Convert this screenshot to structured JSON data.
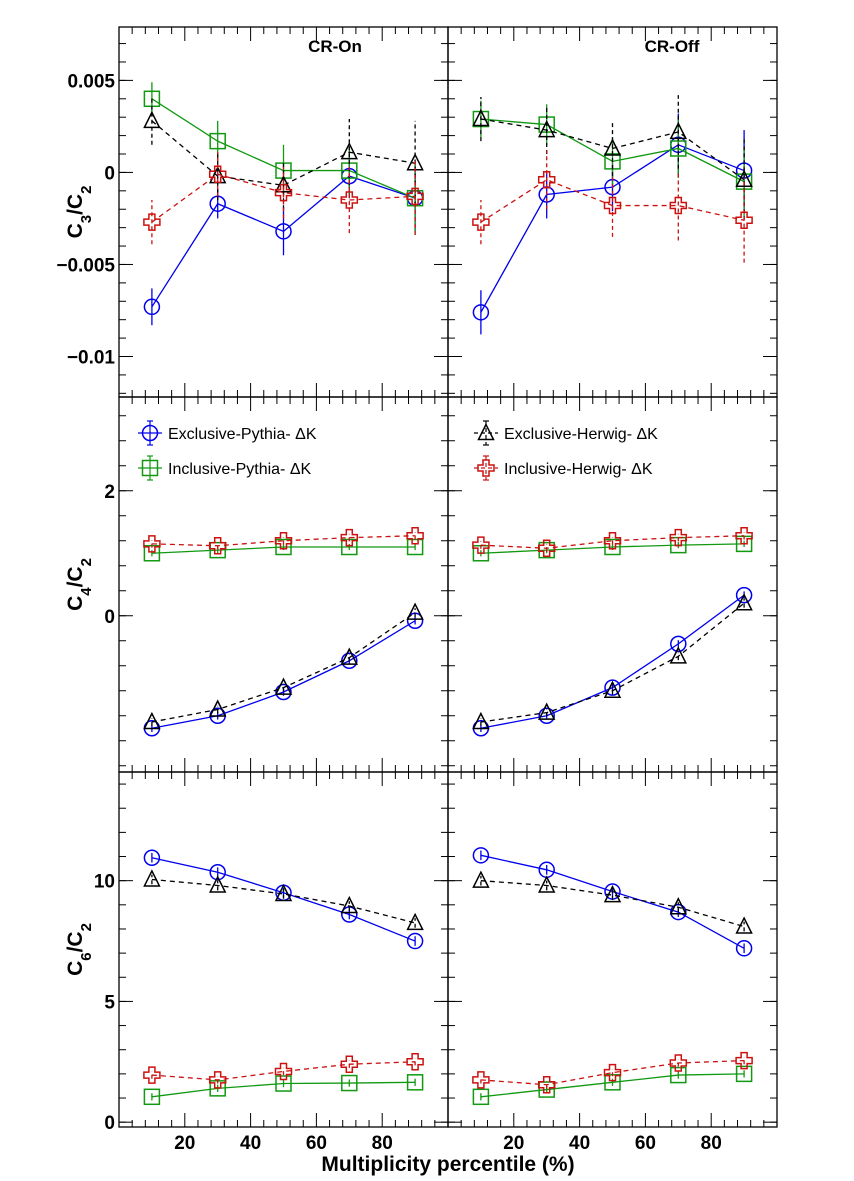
{
  "chart_data": {
    "type": "scatter",
    "xlabel": "Multiplicity percentile (%)",
    "xlim": [
      0,
      100
    ],
    "x_ticks": [
      20,
      40,
      60,
      80
    ],
    "x_tick_labels": [
      "20",
      "40",
      "60",
      "80"
    ],
    "column_labels": [
      "CR-On",
      "CR-Off"
    ],
    "series_styles": [
      {
        "name": "Exclusive-Pythia- ΔK",
        "color": "#0000ee",
        "marker": "circle",
        "line": "solid"
      },
      {
        "name": "Inclusive-Pythia- ΔK",
        "color": "#119911",
        "marker": "square",
        "line": "solid"
      },
      {
        "name": "Exclusive-Herwig- ΔK",
        "color": "#000000",
        "marker": "triangle",
        "line": "dashed"
      },
      {
        "name": "Inclusive-Herwig- ΔK",
        "color": "#cc1111",
        "marker": "cross",
        "line": "dashed"
      }
    ],
    "x": [
      10,
      30,
      50,
      70,
      90
    ],
    "rows": [
      {
        "ylabel_main": "C",
        "ylabel_num": "3",
        "ylabel_sub": "2",
        "ylim": [
          -0.0122,
          0.0079
        ],
        "y_ticks": [
          0.005,
          0,
          -0.005,
          -0.01
        ],
        "y_tick_labels": [
          "0.005",
          "0",
          "−0.005",
          "−0.01"
        ],
        "panels": [
          {
            "label": "CR-On",
            "series": [
              {
                "values": [
                  -0.0073,
                  -0.0017,
                  -0.0032,
                  -0.0002,
                  -0.0014
                ],
                "errors": [
                  0.001,
                  0.0008,
                  0.0013,
                  0.0012,
                  0.0018
                ]
              },
              {
                "values": [
                  0.004,
                  0.0017,
                  0.0001,
                  0.0001,
                  -0.0014
                ],
                "errors": [
                  0.0009,
                  0.0011,
                  0.0014,
                  0.0013,
                  0.002
                ]
              },
              {
                "values": [
                  0.0028,
                  -0.0002,
                  -0.0007,
                  0.0011,
                  0.0005
                ],
                "errors": [
                  0.0013,
                  0.0013,
                  0.0013,
                  0.0018,
                  0.0023
                ]
              },
              {
                "values": [
                  -0.0027,
                  -0.0001,
                  -0.0011,
                  -0.0015,
                  -0.0013
                ],
                "errors": [
                  0.0012,
                  0.0012,
                  0.0014,
                  0.0018,
                  0.0021
                ]
              }
            ]
          },
          {
            "label": "CR-Off",
            "series": [
              {
                "values": [
                  -0.0076,
                  -0.0012,
                  -0.0008,
                  0.0015,
                  0.0001
                ],
                "errors": [
                  0.0012,
                  0.0013,
                  0.0013,
                  0.0017,
                  0.0022
                ]
              },
              {
                "values": [
                  0.0029,
                  0.0026,
                  0.0006,
                  0.0013,
                  -0.0005
                ],
                "errors": [
                  0.001,
                  0.0011,
                  0.0013,
                  0.0016,
                  0.0019
                ]
              },
              {
                "values": [
                  0.0029,
                  0.0023,
                  0.0013,
                  0.0022,
                  -0.0004
                ],
                "errors": [
                  0.0012,
                  0.0013,
                  0.0015,
                  0.002,
                  0.0022
                ]
              },
              {
                "values": [
                  -0.0027,
                  -0.0004,
                  -0.0018,
                  -0.0018,
                  -0.0026
                ],
                "errors": [
                  0.0012,
                  0.0016,
                  0.0017,
                  0.0019,
                  0.0023
                ]
              }
            ]
          }
        ]
      },
      {
        "ylabel_main": "C",
        "ylabel_num": "4",
        "ylabel_sub": "2",
        "ylim": [
          -2.5,
          3.5
        ],
        "y_ticks": [
          2,
          0
        ],
        "y_tick_labels": [
          "2",
          "0"
        ],
        "panels": [
          {
            "label": "",
            "series": [
              {
                "values": [
                  -1.8,
                  -1.6,
                  -1.22,
                  -0.72,
                  -0.08
                ],
                "errors": [
                  0.06,
                  0.06,
                  0.06,
                  0.06,
                  0.06
                ]
              },
              {
                "values": [
                  1.0,
                  1.05,
                  1.1,
                  1.1,
                  1.1
                ],
                "errors": [
                  0.05,
                  0.05,
                  0.05,
                  0.05,
                  0.05
                ]
              },
              {
                "values": [
                  -1.7,
                  -1.5,
                  -1.15,
                  -0.67,
                  0.05
                ],
                "errors": [
                  0.06,
                  0.06,
                  0.06,
                  0.06,
                  0.07
                ]
              },
              {
                "values": [
                  1.15,
                  1.12,
                  1.2,
                  1.25,
                  1.28
                ],
                "errors": [
                  0.06,
                  0.06,
                  0.06,
                  0.06,
                  0.06
                ]
              }
            ]
          },
          {
            "label": "",
            "series": [
              {
                "values": [
                  -1.8,
                  -1.6,
                  -1.15,
                  -0.45,
                  0.33
                ],
                "errors": [
                  0.06,
                  0.06,
                  0.06,
                  0.06,
                  0.06
                ]
              },
              {
                "values": [
                  1.0,
                  1.05,
                  1.1,
                  1.13,
                  1.15
                ],
                "errors": [
                  0.05,
                  0.05,
                  0.05,
                  0.05,
                  0.05
                ]
              },
              {
                "values": [
                  -1.7,
                  -1.55,
                  -1.2,
                  -0.65,
                  0.2
                ],
                "errors": [
                  0.06,
                  0.06,
                  0.06,
                  0.06,
                  0.07
                ]
              },
              {
                "values": [
                  1.13,
                  1.08,
                  1.2,
                  1.25,
                  1.28
                ],
                "errors": [
                  0.06,
                  0.06,
                  0.06,
                  0.06,
                  0.06
                ]
              }
            ]
          }
        ]
      },
      {
        "ylabel_main": "C",
        "ylabel_num": "6",
        "ylabel_sub": "2",
        "ylim": [
          -0.2,
          14.5
        ],
        "y_ticks": [
          10,
          5,
          0
        ],
        "y_tick_labels": [
          "10",
          "5",
          "0"
        ],
        "panels": [
          {
            "label": "",
            "series": [
              {
                "values": [
                  10.95,
                  10.35,
                  9.5,
                  8.6,
                  7.5
                ],
                "errors": [
                  0.2,
                  0.2,
                  0.2,
                  0.2,
                  0.2
                ]
              },
              {
                "values": [
                  1.05,
                  1.4,
                  1.6,
                  1.62,
                  1.65
                ],
                "errors": [
                  0.15,
                  0.15,
                  0.15,
                  0.15,
                  0.15
                ]
              },
              {
                "values": [
                  10.05,
                  9.8,
                  9.45,
                  8.95,
                  8.25
                ],
                "errors": [
                  0.2,
                  0.2,
                  0.2,
                  0.2,
                  0.2
                ]
              },
              {
                "values": [
                  1.95,
                  1.75,
                  2.1,
                  2.4,
                  2.5
                ],
                "errors": [
                  0.15,
                  0.15,
                  0.15,
                  0.15,
                  0.15
                ]
              }
            ]
          },
          {
            "label": "",
            "series": [
              {
                "values": [
                  11.05,
                  10.45,
                  9.55,
                  8.7,
                  7.2
                ],
                "errors": [
                  0.2,
                  0.2,
                  0.2,
                  0.2,
                  0.2
                ]
              },
              {
                "values": [
                  1.05,
                  1.35,
                  1.65,
                  1.95,
                  2.0
                ],
                "errors": [
                  0.15,
                  0.15,
                  0.15,
                  0.15,
                  0.15
                ]
              },
              {
                "values": [
                  10.0,
                  9.8,
                  9.4,
                  8.9,
                  8.1
                ],
                "errors": [
                  0.2,
                  0.2,
                  0.2,
                  0.2,
                  0.2
                ]
              },
              {
                "values": [
                  1.75,
                  1.55,
                  2.05,
                  2.45,
                  2.55
                ],
                "errors": [
                  0.15,
                  0.15,
                  0.15,
                  0.15,
                  0.15
                ]
              }
            ]
          }
        ]
      }
    ],
    "legend": [
      {
        "label": "Exclusive-Pythia- ΔK",
        "series_index": 0
      },
      {
        "label": "Inclusive-Pythia- ΔK",
        "series_index": 1
      },
      {
        "label": "Exclusive-Herwig- ΔK",
        "series_index": 2
      },
      {
        "label": "Inclusive-Herwig- ΔK",
        "series_index": 3
      }
    ],
    "legend_position": "top of middle row"
  }
}
